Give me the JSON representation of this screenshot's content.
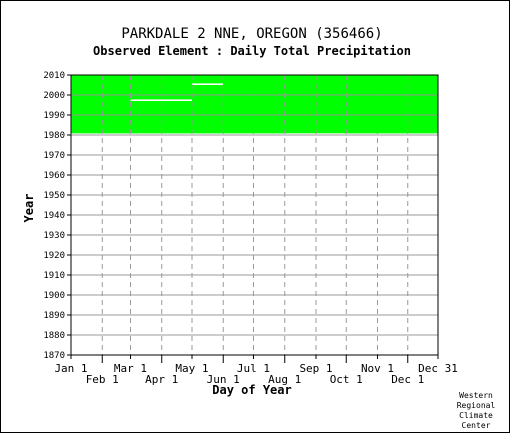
{
  "chart_data": {
    "type": "heatmap",
    "title": "PARKDALE 2 NNE, OREGON   (356466)",
    "subtitle": "Observed Element : Daily Total Precipitation",
    "xlabel": "Day of Year",
    "ylabel": "Year",
    "xlim": [
      1,
      365
    ],
    "ylim": [
      1870,
      2010
    ],
    "y_ticks": [
      1870,
      1880,
      1890,
      1900,
      1910,
      1920,
      1930,
      1940,
      1950,
      1960,
      1970,
      1980,
      1990,
      2000,
      2010
    ],
    "x_ticks_upper": [
      "Jan 1",
      "Mar 1",
      "May 1",
      "Jul 1",
      "Sep 1",
      "Nov 1",
      "Dec 31"
    ],
    "x_ticks_lower": [
      "Feb 1",
      "Apr 1",
      "Jun 1",
      "Aug 1",
      "Oct 1",
      "Dec 1"
    ],
    "x_tick_days_upper": [
      1,
      60,
      121,
      182,
      244,
      305,
      365
    ],
    "x_tick_days_lower": [
      32,
      91,
      152,
      213,
      274,
      335
    ],
    "grid": true,
    "data_color": "#00ff00",
    "coverage": {
      "day_start": 1,
      "day_end": 365,
      "year_start": 1980,
      "year_end": 2010
    },
    "gaps": [
      {
        "day_start": 1,
        "day_end": 365,
        "year": 1980.5
      },
      {
        "day_start": 60,
        "day_end": 121,
        "year": 1997.5
      },
      {
        "day_start": 121,
        "day_end": 152,
        "year": 2005.5
      },
      {
        "day_start": 213,
        "day_end": 244,
        "year": 1980.5
      },
      {
        "day_start": 244,
        "day_end": 274,
        "year": 1980.5
      }
    ]
  },
  "credit": [
    "Western",
    "Regional",
    "Climate",
    "Center"
  ]
}
